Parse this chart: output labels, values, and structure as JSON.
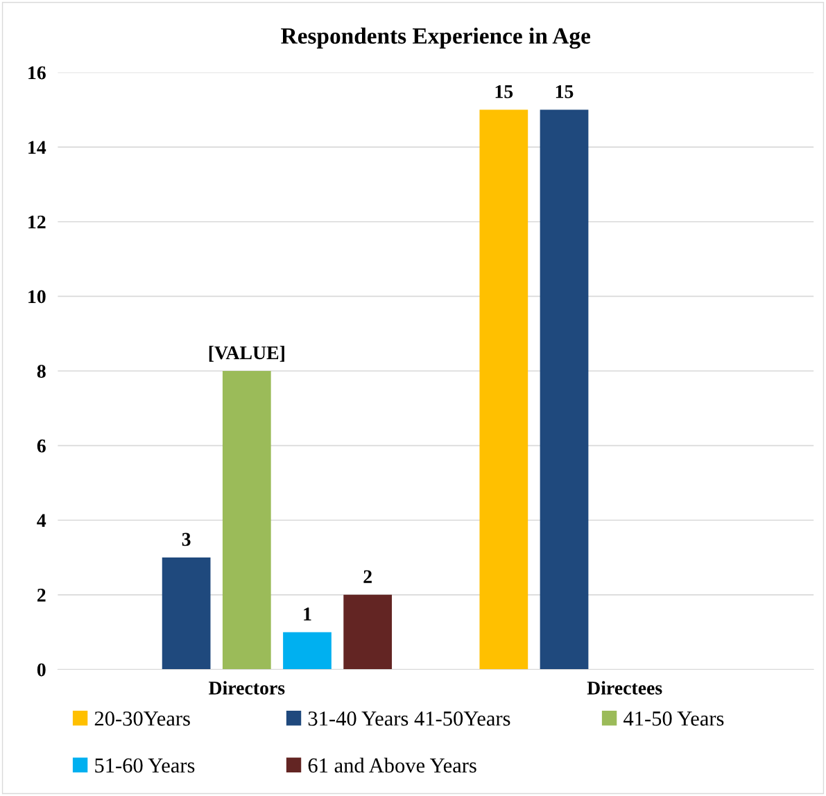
{
  "chart_data": {
    "type": "bar",
    "title": "Respondents Experience in Age",
    "categories": [
      "Directors",
      "Directees"
    ],
    "series": [
      {
        "name": "20-30Years",
        "color": "#ffc000",
        "values": [
          null,
          15
        ],
        "value_labels": [
          null,
          "15"
        ]
      },
      {
        "name": "31-40 Years 41-50Years",
        "color": "#1f497d",
        "values": [
          3,
          15
        ],
        "value_labels": [
          "3",
          "15"
        ]
      },
      {
        "name": "41-50 Years",
        "color": "#9bbb59",
        "values": [
          8,
          null
        ],
        "value_labels": [
          "[VALUE]",
          null
        ]
      },
      {
        "name": "51-60 Years",
        "color": "#00b0f0",
        "values": [
          1,
          null
        ],
        "value_labels": [
          "1",
          null
        ]
      },
      {
        "name": "61 and Above Years",
        "color": "#632523",
        "values": [
          2,
          null
        ],
        "value_labels": [
          "2",
          null
        ]
      }
    ],
    "ylim": [
      0,
      16
    ],
    "yticks": [
      0,
      2,
      4,
      6,
      8,
      10,
      12,
      14,
      16
    ],
    "grid": "y",
    "legend": "bottom"
  }
}
